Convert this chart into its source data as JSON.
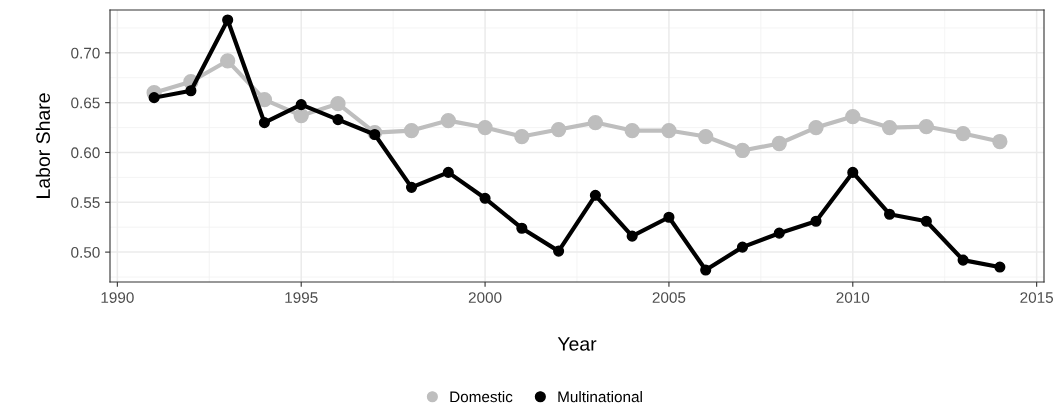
{
  "chart_data": {
    "type": "line",
    "xlabel": "Year",
    "ylabel": "Labor Share",
    "x": [
      1991,
      1992,
      1993,
      1994,
      1995,
      1996,
      1997,
      1998,
      1999,
      2000,
      2001,
      2002,
      2003,
      2004,
      2005,
      2006,
      2007,
      2008,
      2009,
      2010,
      2011,
      2012,
      2013,
      2014
    ],
    "series": [
      {
        "name": "Domestic",
        "color": "#bebebe",
        "values": [
          0.66,
          0.671,
          0.692,
          0.653,
          0.637,
          0.649,
          0.62,
          0.622,
          0.632,
          0.625,
          0.616,
          0.623,
          0.63,
          0.622,
          0.622,
          0.616,
          0.602,
          0.609,
          0.625,
          0.636,
          0.625,
          0.626,
          0.619,
          0.611
        ]
      },
      {
        "name": "Multinational",
        "color": "#000000",
        "values": [
          0.655,
          0.662,
          0.733,
          0.63,
          0.648,
          0.633,
          0.618,
          0.565,
          0.58,
          0.554,
          0.524,
          0.501,
          0.557,
          0.516,
          0.535,
          0.482,
          0.505,
          0.519,
          0.531,
          0.58,
          0.538,
          0.531,
          0.492,
          0.485
        ]
      }
    ],
    "xlim": [
      1989.8,
      2015.2
    ],
    "ylim": [
      0.47,
      0.743
    ],
    "xticks": [
      1990,
      1995,
      2000,
      2005,
      2010,
      2015
    ],
    "yticks": [
      {
        "value": 0.5,
        "label": "0.50"
      },
      {
        "value": 0.55,
        "label": "0.55"
      },
      {
        "value": 0.6,
        "label": "0.60"
      },
      {
        "value": 0.65,
        "label": "0.65"
      },
      {
        "value": 0.7,
        "label": "0.70"
      }
    ],
    "grid": true,
    "legend": "bottom",
    "marker": "circle",
    "line_style": "solid"
  }
}
